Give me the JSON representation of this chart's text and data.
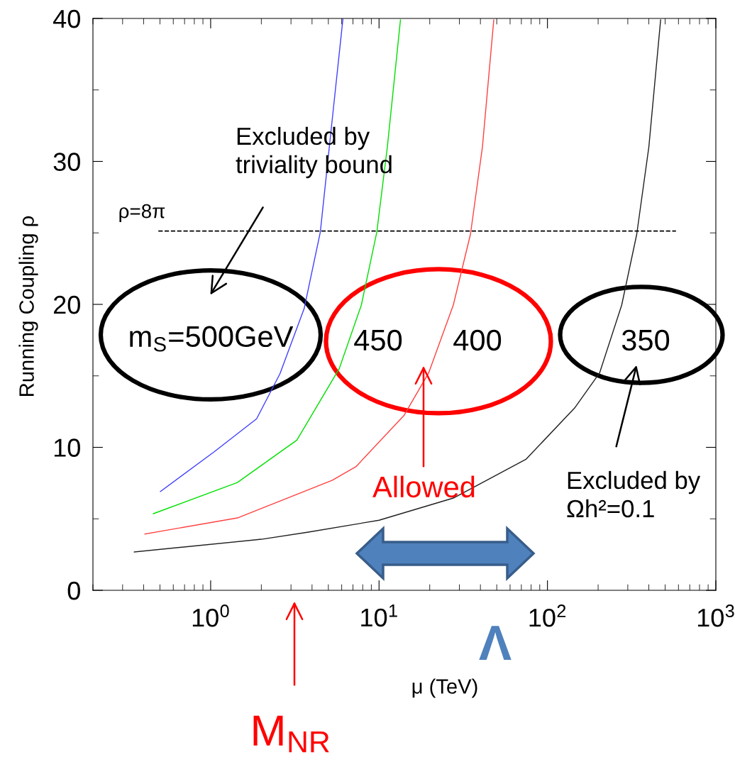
{
  "chart_data": {
    "type": "line",
    "xlabel": "μ (TeV)",
    "ylabel": "Running Coupling ρ",
    "log": "x",
    "grid": false,
    "legend": false,
    "marker": "none",
    "line_style": "solid",
    "xlim": [
      0.2,
      1000
    ],
    "xticks": [
      {
        "value": 1,
        "label": "10$^{0}$"
      },
      {
        "value": 10,
        "label": "10$^{1}$"
      },
      {
        "value": 100,
        "label": "10$^{2}$"
      },
      {
        "value": 1000,
        "label": "10$^{3}$"
      }
    ],
    "ylim": [
      0,
      40
    ],
    "yticks": [
      0,
      10,
      20,
      30,
      40
    ],
    "series": [
      {
        "color": "#4040ff",
        "x": [
          0.503,
          1.05,
          1.875,
          2.58,
          3.59,
          4.48,
          5.28,
          6.1
        ],
        "values": [
          6.91,
          9.69,
          12.0,
          15.15,
          19.7,
          25.06,
          33.0,
          39.95
        ]
      },
      {
        "color": "#00e000",
        "x": [
          0.457,
          1.44,
          3.25,
          5.8,
          7.85,
          9.7,
          11.2,
          13.4
        ],
        "values": [
          5.36,
          7.54,
          10.5,
          15.5,
          19.95,
          25.06,
          31.0,
          39.9
        ]
      },
      {
        "color": "#ff4040",
        "x": [
          0.407,
          1.44,
          5.28,
          7.3,
          14.1,
          19.7,
          27.6,
          34.9,
          41.1,
          48
        ],
        "values": [
          3.94,
          5.06,
          7.7,
          8.65,
          12.25,
          15.2,
          19.95,
          24.9,
          31.0,
          39.9
        ]
      },
      {
        "color": "#202020",
        "x": [
          0.352,
          2.0,
          3.8,
          10,
          27.6,
          74.8,
          145,
          204,
          276,
          339,
          400,
          470
        ],
        "values": [
          2.68,
          3.57,
          4.07,
          4.9,
          6.45,
          9.18,
          12.75,
          15.2,
          19.95,
          24.9,
          31.0,
          39.9
        ]
      }
    ],
    "ref_lines": [
      {
        "axis": "y",
        "value": 25.13,
        "color": "#000000",
        "line_style": "dashed"
      }
    ],
    "annotations": [
      "Excluded by\ntriviality bound",
      "Allowed",
      "Excluded by\nΩh²=0.1",
      "Λ",
      "M$_{NR}$",
      "ρ=8π",
      "m$_{S}$=500GeV",
      "450",
      "400",
      "350"
    ]
  }
}
